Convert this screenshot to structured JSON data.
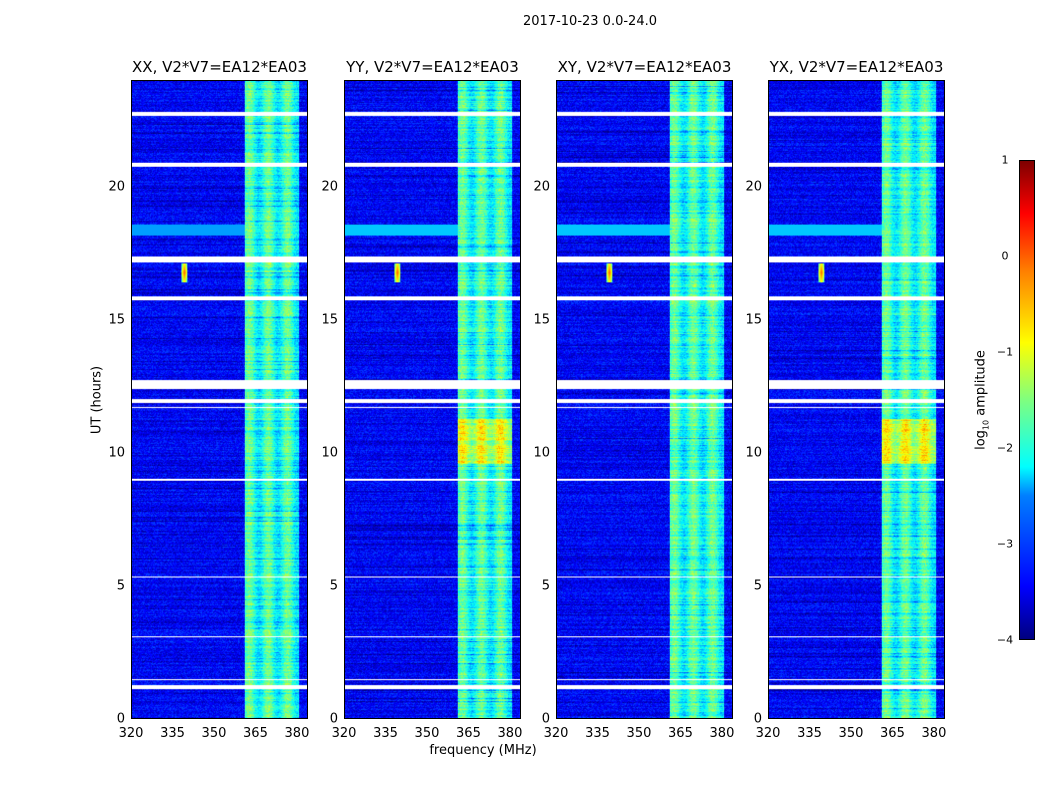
{
  "chart_data": {
    "type": "heatmap",
    "title": "2017-10-23 0.0-24.0",
    "xlabel": "frequency (MHz)",
    "ylabel": "UT (hours)",
    "xlim": [
      320,
      384
    ],
    "ylim": [
      0,
      24
    ],
    "xticks": [
      "320",
      "335",
      "350",
      "365",
      "380"
    ],
    "yticks": [
      "0",
      "5",
      "10",
      "15",
      "20"
    ],
    "panels": [
      {
        "title": "XX, V2*V7=EA12*EA03"
      },
      {
        "title": "YY, V2*V7=EA12*EA03"
      },
      {
        "title": "XY, V2*V7=EA12*EA03"
      },
      {
        "title": "YX, V2*V7=EA12*EA03"
      }
    ],
    "colorbar": {
      "label": "log10 amplitude",
      "label_main": "log",
      "label_sub": "10",
      "label_rest": " amplitude",
      "range": [
        -4,
        1
      ],
      "ticks": [
        "1",
        "0",
        "−1",
        "−2",
        "−3",
        "−4"
      ],
      "colormap": "jet"
    },
    "background_level": -3.4,
    "bright_band": {
      "freq_range": [
        361,
        381
      ],
      "level": -1.9
    },
    "rfi_spike": {
      "freq": 339,
      "time": 16.8,
      "level": 0
    },
    "flagged_hours": [
      [
        22.7,
        22.85
      ],
      [
        20.8,
        20.95
      ],
      [
        17.2,
        17.4
      ],
      [
        15.75,
        15.9
      ],
      [
        12.4,
        12.75
      ],
      [
        11.9,
        12.05
      ],
      [
        11.7,
        11.75
      ],
      [
        8.95,
        9.05
      ],
      [
        5.3,
        5.35
      ],
      [
        3.05,
        3.1
      ],
      [
        1.1,
        1.25
      ],
      [
        1.45,
        1.5
      ]
    ]
  }
}
